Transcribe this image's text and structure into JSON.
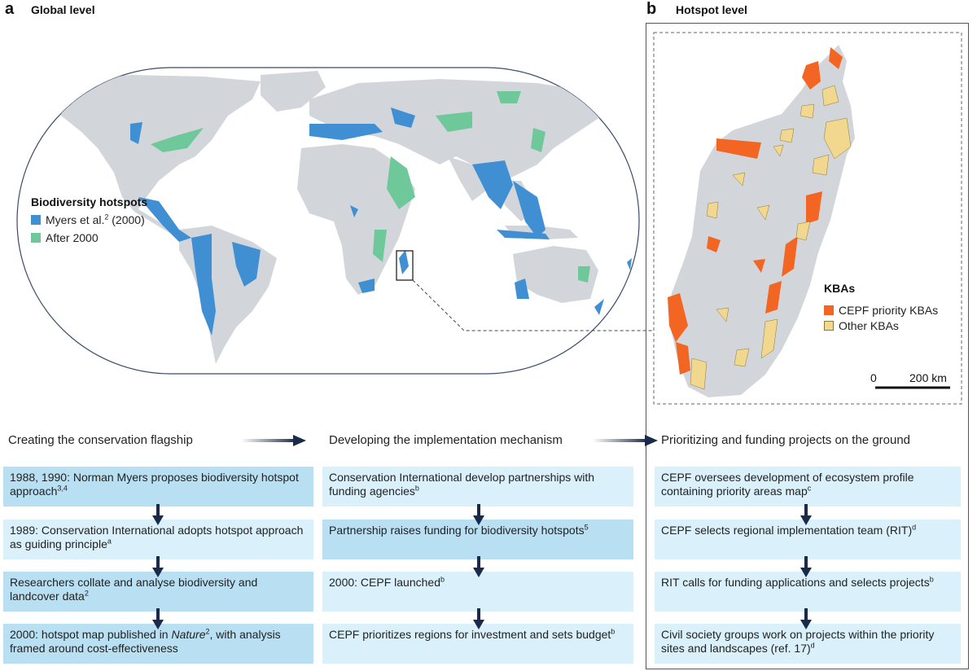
{
  "panels": {
    "a": {
      "letter": "a",
      "title": "Global level"
    },
    "b": {
      "letter": "b",
      "title": "Hotspot level"
    }
  },
  "map_legend": {
    "title": "Biodiversity hotspots",
    "items": [
      {
        "label": "Myers et al.",
        "sup": "2",
        "suffix": " (2000)",
        "color": "#3f8fd2"
      },
      {
        "label": "After 2000",
        "sup": "",
        "suffix": "",
        "color": "#6fc89a"
      }
    ]
  },
  "kba_legend": {
    "title": "KBAs",
    "items": [
      {
        "label": "CEPF priority KBAs",
        "color": "#f26522"
      },
      {
        "label": "Other KBAs",
        "color": "#f2d88f"
      }
    ]
  },
  "scale_bar": {
    "start": "0",
    "end": "200 km"
  },
  "colors": {
    "land": "#d2d6da",
    "box_dark": "#b8dff2",
    "box_light": "#daf0fb",
    "arrow": "#1c2a4a"
  },
  "columns": [
    {
      "heading": "Creating the conservation flagship",
      "steps": [
        {
          "text": "1988, 1990: Norman Myers proposes biodiversity hotspot approach",
          "sup": "3,4"
        },
        {
          "text": "1989: Conservation International adopts hotspot approach as guiding principle",
          "sup": "a"
        },
        {
          "text": "Researchers collate and analyse biodiversity and landcover data",
          "sup": "2"
        },
        {
          "text_before": "2000: hotspot map published in ",
          "italic": "Nature",
          "sup": "2",
          "text_after": ", with analysis framed around cost-effectiveness"
        }
      ]
    },
    {
      "heading": "Developing the implementation mechanism",
      "steps": [
        {
          "text": "Conservation International develop partnerships with funding agencies",
          "sup": "b"
        },
        {
          "text": "Partnership raises funding for biodiversity hotspots",
          "sup": "5"
        },
        {
          "text": "2000: CEPF launched",
          "sup": "b"
        },
        {
          "text": "CEPF prioritizes regions for investment and sets budget",
          "sup": "b"
        }
      ]
    },
    {
      "heading": "Prioritizing and funding projects on the ground",
      "steps": [
        {
          "text": "CEPF oversees development of ecosystem profile containing priority areas map",
          "sup": "c"
        },
        {
          "text": "CEPF selects regional implementation team (RIT)",
          "sup": "d"
        },
        {
          "text": "RIT calls for funding applications and selects projects",
          "sup": "b"
        },
        {
          "text": "Civil society groups work on projects within the priority sites and landscapes (ref. 17)",
          "sup": "d"
        }
      ]
    }
  ]
}
